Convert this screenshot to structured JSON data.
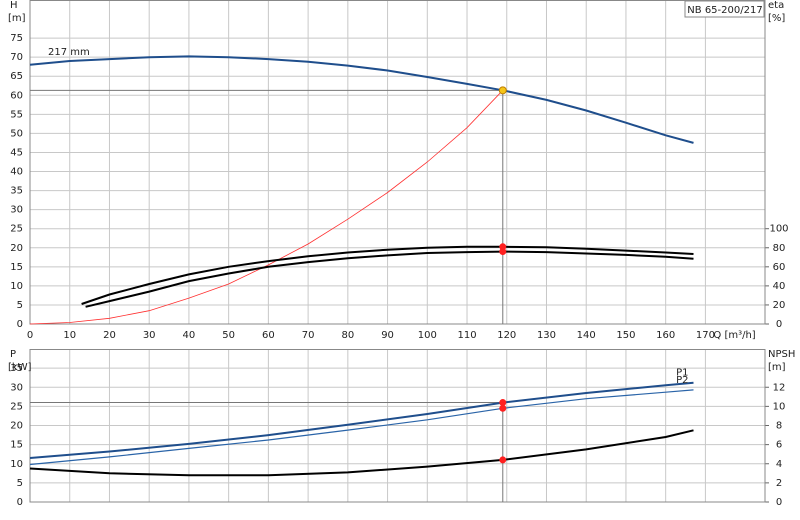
{
  "chart_data": [
    {
      "type": "line",
      "title": "NB 65-200/217",
      "y_label": "H",
      "y_unit": "[m]",
      "y2_label": "eta",
      "y2_unit": "[%]",
      "x_label": "Q [m³/h]",
      "xlim": [
        0,
        185
      ],
      "xticks": [
        0,
        10,
        20,
        30,
        40,
        50,
        60,
        70,
        80,
        90,
        100,
        110,
        120,
        130,
        140,
        150,
        160,
        170
      ],
      "ylim": [
        0,
        85
      ],
      "yticks": [
        0,
        5,
        10,
        15,
        20,
        25,
        30,
        35,
        40,
        45,
        50,
        55,
        60,
        65,
        70,
        75
      ],
      "y2lim": [
        0,
        340
      ],
      "y2ticks": [
        0,
        20,
        40,
        60,
        80,
        100
      ],
      "grid": true,
      "series": [
        {
          "name": "217 mm",
          "color": "#1f4e8c",
          "linewidth": 2,
          "x": [
            0,
            10,
            20,
            30,
            40,
            50,
            60,
            70,
            80,
            90,
            100,
            110,
            119,
            130,
            140,
            150,
            160,
            167
          ],
          "values": [
            68,
            69,
            69.5,
            70,
            70.2,
            70,
            69.5,
            68.8,
            67.8,
            66.5,
            64.8,
            63,
            61.3,
            58.8,
            56,
            52.8,
            49.5,
            47.5
          ]
        },
        {
          "color": "#ff3030",
          "linewidth": 0.8,
          "x": [
            0,
            10,
            20,
            30,
            40,
            50,
            60,
            70,
            80,
            90,
            100,
            110,
            119
          ],
          "values": [
            0,
            0.4,
            1.5,
            3.5,
            6.8,
            10.5,
            15.5,
            21,
            27.5,
            34.5,
            42.5,
            51.5,
            61.3
          ]
        },
        {
          "color": "#000000",
          "linewidth": 2,
          "axis": "y2",
          "x": [
            13,
            20,
            30,
            40,
            50,
            60,
            70,
            80,
            90,
            100,
            110,
            119,
            130,
            140,
            150,
            160,
            167
          ],
          "values": [
            21,
            31,
            42,
            52,
            60,
            66,
            71,
            75,
            78,
            80,
            81,
            81,
            80.5,
            79,
            77,
            75,
            73.5
          ]
        },
        {
          "color": "#000000",
          "linewidth": 2,
          "axis": "y2",
          "x": [
            14,
            20,
            30,
            40,
            50,
            60,
            70,
            80,
            90,
            100,
            110,
            119,
            130,
            140,
            150,
            160,
            167
          ],
          "values": [
            18,
            24,
            34,
            45,
            53,
            60,
            65,
            69,
            72,
            74.5,
            75.5,
            76,
            75.5,
            74,
            72.5,
            70.5,
            68.5
          ]
        }
      ],
      "points": [
        {
          "x": 119,
          "y": 61.3,
          "color": "#f5c518"
        },
        {
          "x": 119,
          "y": 81,
          "axis": "y2",
          "color": "#ff2020"
        },
        {
          "x": 119,
          "y": 76,
          "axis": "y2",
          "color": "#ff2020"
        }
      ]
    },
    {
      "type": "line",
      "y_label": "P",
      "y_unit": "[kW]",
      "y2_label": "NPSH",
      "y2_unit": "[m]",
      "xlim": [
        0,
        185
      ],
      "xticks": [
        0,
        10,
        20,
        30,
        40,
        50,
        60,
        70,
        80,
        90,
        100,
        110,
        120,
        130,
        140,
        150,
        160,
        170
      ],
      "ylim": [
        0,
        40
      ],
      "yticks": [
        0,
        5,
        10,
        15,
        20,
        25,
        30,
        35
      ],
      "y2lim": [
        0,
        16
      ],
      "y2ticks": [
        0,
        2,
        4,
        6,
        8,
        10,
        12
      ],
      "grid": true,
      "series": [
        {
          "name": "P1",
          "color": "#1f4e8c",
          "linewidth": 2,
          "x": [
            0,
            20,
            40,
            60,
            80,
            100,
            119,
            140,
            160,
            167
          ],
          "values": [
            11.5,
            13.2,
            15.2,
            17.5,
            20.2,
            23,
            26,
            28.5,
            30.5,
            31.2
          ]
        },
        {
          "name": "P2",
          "color": "#2a64a8",
          "linewidth": 1.2,
          "x": [
            0,
            20,
            40,
            60,
            80,
            100,
            119,
            140,
            160,
            167
          ],
          "values": [
            9.8,
            11.8,
            14,
            16.2,
            18.8,
            21.5,
            24.5,
            27,
            28.7,
            29.3
          ]
        },
        {
          "color": "#000000",
          "linewidth": 2,
          "axis": "y2",
          "x": [
            0,
            20,
            40,
            60,
            80,
            100,
            119,
            140,
            160,
            167
          ],
          "values": [
            3.5,
            3,
            2.8,
            2.8,
            3.1,
            3.7,
            4.4,
            5.5,
            6.8,
            7.5
          ]
        }
      ],
      "points": [
        {
          "x": 119,
          "y": 26,
          "color": "#ff2020"
        },
        {
          "x": 119,
          "y": 24.5,
          "color": "#ff2020"
        },
        {
          "x": 119,
          "y": 4.4,
          "axis": "y2",
          "color": "#ff2020"
        }
      ]
    }
  ]
}
